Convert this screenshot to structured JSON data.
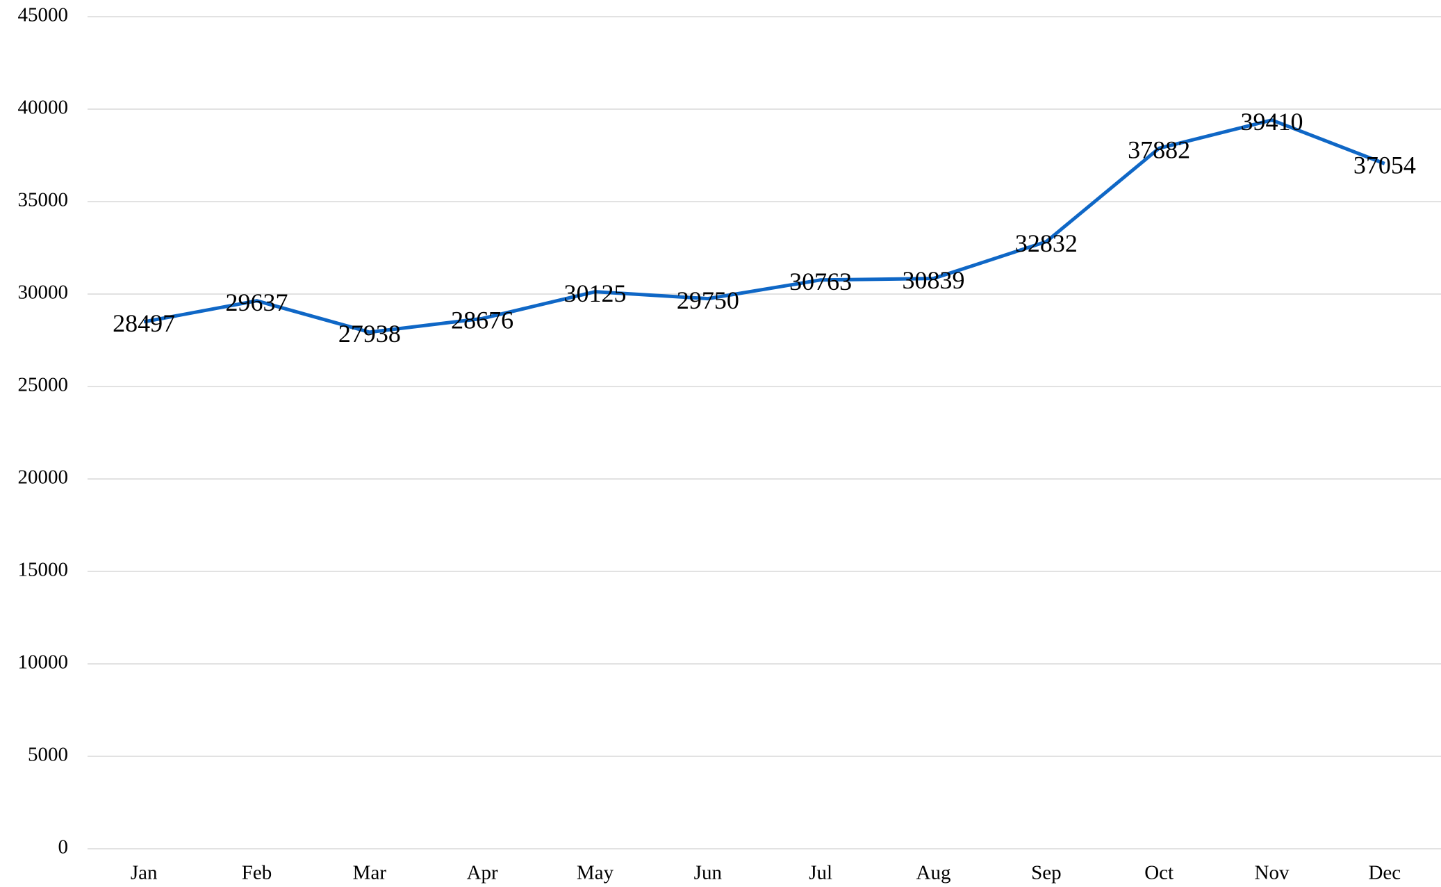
{
  "chart_data": {
    "type": "line",
    "categories": [
      "Jan",
      "Feb",
      "Mar",
      "Apr",
      "May",
      "Jun",
      "Jul",
      "Aug",
      "Sep",
      "Oct",
      "Nov",
      "Dec"
    ],
    "series": [
      {
        "name": "Value",
        "color": "#0f67c6",
        "values": [
          28497,
          29637,
          27938,
          28676,
          30125,
          29750,
          30763,
          30839,
          32832,
          37882,
          39410,
          37054
        ]
      }
    ],
    "ylim": [
      0,
      45000
    ],
    "yticks": [
      0,
      5000,
      10000,
      15000,
      20000,
      25000,
      30000,
      35000,
      40000,
      45000
    ],
    "grid": true
  }
}
